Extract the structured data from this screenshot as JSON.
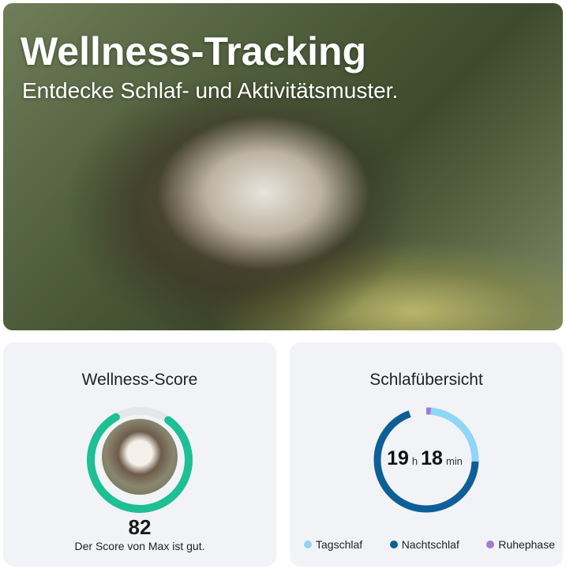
{
  "hero": {
    "title": "Wellness-Tracking",
    "subtitle": "Entdecke Schlaf- und Aktivitätsmuster."
  },
  "wellness": {
    "title": "Wellness-Score",
    "score": "82",
    "score_fraction": 0.82,
    "message": "Der Score von Max ist gut.",
    "color": "#1dbf95"
  },
  "sleep": {
    "title": "Schlafübersicht",
    "hours": "19",
    "hours_unit": "h",
    "minutes": "18",
    "minutes_unit": "min",
    "segments": [
      {
        "label": "Tagschlaf",
        "fraction": 0.24,
        "color": "#8fd6f7"
      },
      {
        "label": "Nachtschlaf",
        "fraction": 0.69,
        "color": "#0e5f97"
      },
      {
        "label": "Ruhephase",
        "fraction": 0.07,
        "color": "#a57ad0"
      }
    ]
  }
}
